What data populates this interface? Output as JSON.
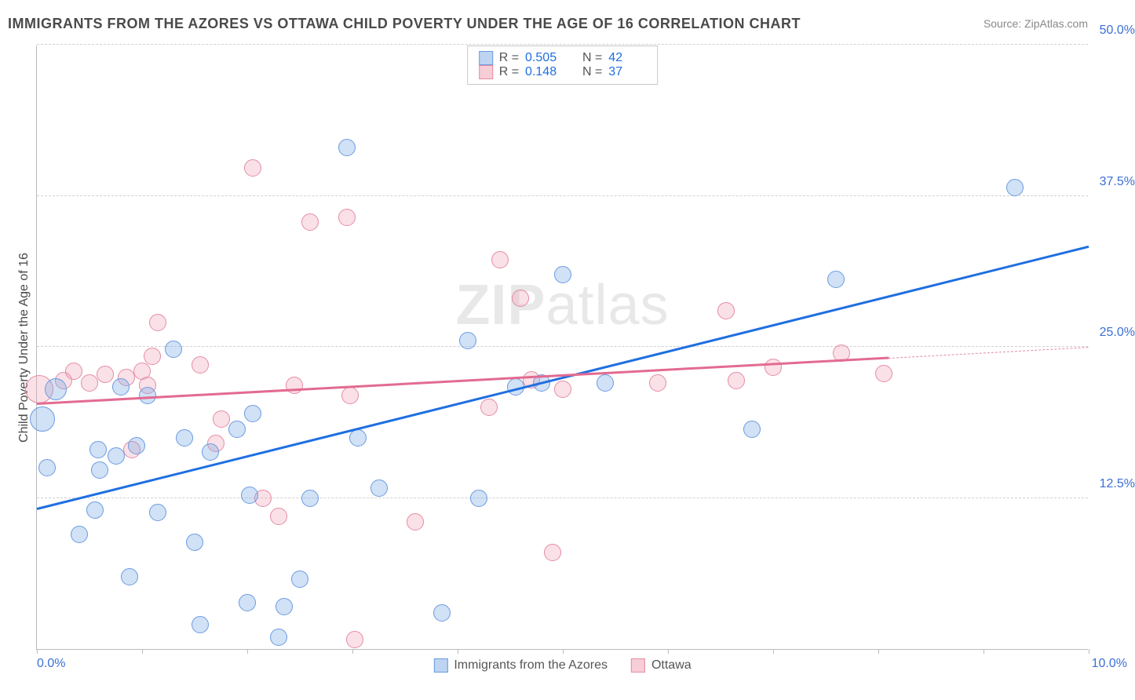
{
  "title": "IMMIGRANTS FROM THE AZORES VS OTTAWA CHILD POVERTY UNDER THE AGE OF 16 CORRELATION CHART",
  "source_prefix": "Source: ",
  "source_name": "ZipAtlas.com",
  "watermark_bold": "ZIP",
  "watermark_light": "atlas",
  "chart": {
    "type": "scatter",
    "ylabel": "Child Poverty Under the Age of 16",
    "xlim": [
      0,
      10
    ],
    "ylim": [
      0,
      50
    ],
    "xtick_labels": {
      "left": "0.0%",
      "right": "10.0%"
    },
    "ytick_positions": [
      12.5,
      25.0,
      37.5,
      50.0
    ],
    "ytick_labels": [
      "12.5%",
      "25.0%",
      "37.5%",
      "50.0%"
    ],
    "background_color": "#ffffff",
    "grid_color": "#d0d0d0",
    "axis_color": "#bbbbbb",
    "tick_color": "#3b6fd6",
    "label_color": "#4a4a4a",
    "label_fontsize": 16,
    "title_fontsize": 18
  },
  "series": {
    "blue": {
      "name": "Immigrants from the Azores",
      "color_fill": "rgba(124,169,230,0.35)",
      "color_stroke": "#6a9be0",
      "trend_color": "#1f6fe0",
      "R": "0.505",
      "N": "42",
      "marker_radius": 11,
      "trend": {
        "x0": 0,
        "y0": 11.5,
        "x1": 10,
        "y1": 33.2
      },
      "points": [
        {
          "x": 0.05,
          "y": 19.0,
          "r": 16
        },
        {
          "x": 0.1,
          "y": 15.0,
          "r": 11
        },
        {
          "x": 0.18,
          "y": 21.5,
          "r": 14
        },
        {
          "x": 0.4,
          "y": 9.5,
          "r": 11
        },
        {
          "x": 0.55,
          "y": 11.5,
          "r": 11
        },
        {
          "x": 0.58,
          "y": 16.5,
          "r": 11
        },
        {
          "x": 0.6,
          "y": 14.8,
          "r": 11
        },
        {
          "x": 0.75,
          "y": 16.0,
          "r": 11
        },
        {
          "x": 0.8,
          "y": 21.7,
          "r": 11
        },
        {
          "x": 0.88,
          "y": 6.0,
          "r": 11
        },
        {
          "x": 0.95,
          "y": 16.8,
          "r": 11
        },
        {
          "x": 1.05,
          "y": 21.0,
          "r": 11
        },
        {
          "x": 1.15,
          "y": 11.3,
          "r": 11
        },
        {
          "x": 1.3,
          "y": 24.8,
          "r": 11
        },
        {
          "x": 1.4,
          "y": 17.5,
          "r": 11
        },
        {
          "x": 1.5,
          "y": 8.8,
          "r": 11
        },
        {
          "x": 1.55,
          "y": 2.0,
          "r": 11
        },
        {
          "x": 1.65,
          "y": 16.3,
          "r": 11
        },
        {
          "x": 1.9,
          "y": 18.2,
          "r": 11
        },
        {
          "x": 2.0,
          "y": 3.8,
          "r": 11
        },
        {
          "x": 2.02,
          "y": 12.7,
          "r": 11
        },
        {
          "x": 2.05,
          "y": 19.5,
          "r": 11
        },
        {
          "x": 2.3,
          "y": 1.0,
          "r": 11
        },
        {
          "x": 2.35,
          "y": 3.5,
          "r": 11
        },
        {
          "x": 2.5,
          "y": 5.8,
          "r": 11
        },
        {
          "x": 2.6,
          "y": 12.5,
          "r": 11
        },
        {
          "x": 2.95,
          "y": 41.5,
          "r": 11
        },
        {
          "x": 3.05,
          "y": 17.5,
          "r": 11
        },
        {
          "x": 3.25,
          "y": 13.3,
          "r": 11
        },
        {
          "x": 3.85,
          "y": 3.0,
          "r": 11
        },
        {
          "x": 4.1,
          "y": 25.5,
          "r": 11
        },
        {
          "x": 4.2,
          "y": 12.5,
          "r": 11
        },
        {
          "x": 4.55,
          "y": 21.7,
          "r": 11
        },
        {
          "x": 4.8,
          "y": 22.0,
          "r": 11
        },
        {
          "x": 5.0,
          "y": 31.0,
          "r": 11
        },
        {
          "x": 5.4,
          "y": 22.0,
          "r": 11
        },
        {
          "x": 6.8,
          "y": 18.2,
          "r": 11
        },
        {
          "x": 7.6,
          "y": 30.6,
          "r": 11
        },
        {
          "x": 9.3,
          "y": 38.2,
          "r": 11
        }
      ]
    },
    "pink": {
      "name": "Ottawa",
      "color_fill": "rgba(240,156,176,0.30)",
      "color_stroke": "#e58ba4",
      "trend_color": "#e26b91",
      "R": "0.148",
      "N": "37",
      "marker_radius": 11,
      "trend": {
        "x0": 0,
        "y0": 20.2,
        "x1": 8.1,
        "y1": 24.0
      },
      "trend_dash": {
        "x0": 8.1,
        "y0": 24.0,
        "x1": 10,
        "y1": 24.9
      },
      "points": [
        {
          "x": 0.02,
          "y": 21.5,
          "r": 18
        },
        {
          "x": 0.25,
          "y": 22.2,
          "r": 11
        },
        {
          "x": 0.35,
          "y": 23.0,
          "r": 11
        },
        {
          "x": 0.5,
          "y": 22.0,
          "r": 11
        },
        {
          "x": 0.65,
          "y": 22.7,
          "r": 11
        },
        {
          "x": 0.85,
          "y": 22.5,
          "r": 11
        },
        {
          "x": 0.9,
          "y": 16.5,
          "r": 11
        },
        {
          "x": 1.0,
          "y": 23.0,
          "r": 11
        },
        {
          "x": 1.05,
          "y": 21.8,
          "r": 11
        },
        {
          "x": 1.1,
          "y": 24.2,
          "r": 11
        },
        {
          "x": 1.15,
          "y": 27.0,
          "r": 11
        },
        {
          "x": 1.55,
          "y": 23.5,
          "r": 11
        },
        {
          "x": 1.7,
          "y": 17.0,
          "r": 11
        },
        {
          "x": 1.75,
          "y": 19.0,
          "r": 11
        },
        {
          "x": 2.05,
          "y": 39.8,
          "r": 11
        },
        {
          "x": 2.15,
          "y": 12.5,
          "r": 11
        },
        {
          "x": 2.3,
          "y": 11.0,
          "r": 11
        },
        {
          "x": 2.45,
          "y": 21.8,
          "r": 11
        },
        {
          "x": 2.6,
          "y": 35.3,
          "r": 11
        },
        {
          "x": 2.95,
          "y": 35.7,
          "r": 11
        },
        {
          "x": 2.98,
          "y": 21.0,
          "r": 11
        },
        {
          "x": 3.02,
          "y": 0.8,
          "r": 11
        },
        {
          "x": 3.6,
          "y": 10.5,
          "r": 11
        },
        {
          "x": 4.3,
          "y": 20.0,
          "r": 11
        },
        {
          "x": 4.4,
          "y": 32.2,
          "r": 11
        },
        {
          "x": 4.6,
          "y": 29.0,
          "r": 11
        },
        {
          "x": 4.7,
          "y": 22.3,
          "r": 11
        },
        {
          "x": 4.9,
          "y": 8.0,
          "r": 11
        },
        {
          "x": 5.0,
          "y": 21.5,
          "r": 11
        },
        {
          "x": 5.9,
          "y": 22.0,
          "r": 11
        },
        {
          "x": 6.55,
          "y": 28.0,
          "r": 11
        },
        {
          "x": 6.65,
          "y": 22.2,
          "r": 11
        },
        {
          "x": 7.0,
          "y": 23.3,
          "r": 11
        },
        {
          "x": 7.65,
          "y": 24.5,
          "r": 11
        },
        {
          "x": 8.05,
          "y": 22.8,
          "r": 11
        }
      ]
    }
  },
  "legend_top": {
    "r_label": "R =",
    "n_label": "N ="
  },
  "legend_bottom": [
    {
      "series": "blue"
    },
    {
      "series": "pink"
    }
  ]
}
